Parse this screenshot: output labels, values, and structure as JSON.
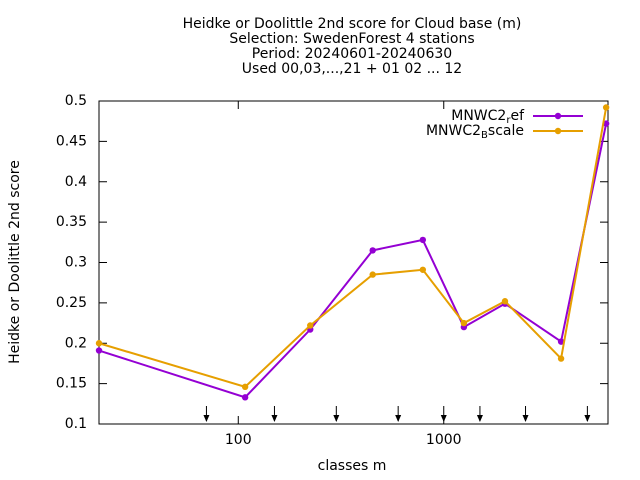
{
  "chart_data": {
    "type": "line",
    "title": [
      "Heidke or Doolittle 2nd score  for Cloud base (m)",
      "Selection: SwedenForest      4 stations",
      "Period: 20240601-20240630",
      "Used 00,03,...,21 + 01 02 ... 12"
    ],
    "x_label": "classes m",
    "y_label": "Heidke or Doolittle 2nd score",
    "log_x": true,
    "x": [
      21,
      108,
      224,
      451,
      791,
      1253,
      1986,
      3724,
      6170
    ],
    "series": [
      {
        "name": "MNWC2_ref",
        "color": "#9400d3",
        "values": [
          0.191,
          0.133,
          0.217,
          0.315,
          0.328,
          0.22,
          0.249,
          0.202,
          0.472
        ]
      },
      {
        "name": "MNWC2_Bscale",
        "color": "#e69f00",
        "values": [
          0.2,
          0.146,
          0.222,
          0.285,
          0.291,
          0.225,
          0.252,
          0.181,
          0.492
        ]
      }
    ],
    "arrows": [
      70,
      150,
      300,
      600,
      1000,
      1500,
      2500,
      5000
    ],
    "xlim": [
      21,
      6300
    ],
    "xticks": [
      100,
      1000
    ],
    "ylim": [
      0.1,
      0.5
    ],
    "yticks": [
      0.1,
      0.15,
      0.2,
      0.25,
      0.3,
      0.35,
      0.4,
      0.45,
      0.5
    ],
    "legend": "top-right"
  }
}
